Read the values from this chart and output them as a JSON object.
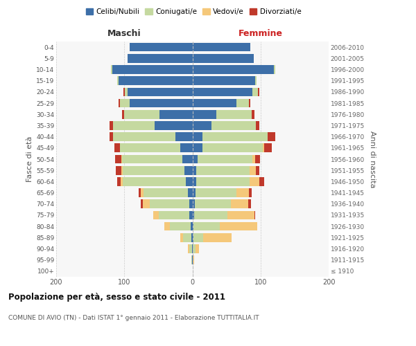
{
  "age_groups": [
    "100+",
    "95-99",
    "90-94",
    "85-89",
    "80-84",
    "75-79",
    "70-74",
    "65-69",
    "60-64",
    "55-59",
    "50-54",
    "45-49",
    "40-44",
    "35-39",
    "30-34",
    "25-29",
    "20-24",
    "15-19",
    "10-14",
    "5-9",
    "0-4"
  ],
  "birth_years": [
    "≤ 1910",
    "1911-1915",
    "1916-1920",
    "1921-1925",
    "1926-1930",
    "1931-1935",
    "1936-1940",
    "1941-1945",
    "1946-1950",
    "1951-1955",
    "1956-1960",
    "1961-1965",
    "1966-1970",
    "1971-1975",
    "1976-1980",
    "1981-1985",
    "1986-1990",
    "1991-1995",
    "1996-2000",
    "2001-2005",
    "2006-2010"
  ],
  "colors": {
    "celibi": "#3d6fa8",
    "coniugati": "#c5d9a0",
    "vedovi": "#f5c87a",
    "divorziati": "#c0392b"
  },
  "maschi": {
    "celibi": [
      0,
      1,
      1,
      2,
      3,
      5,
      5,
      7,
      10,
      12,
      15,
      18,
      25,
      55,
      48,
      92,
      95,
      108,
      118,
      95,
      92
    ],
    "coniugati": [
      0,
      1,
      4,
      12,
      30,
      44,
      58,
      65,
      92,
      90,
      88,
      88,
      92,
      62,
      52,
      14,
      4,
      2,
      2,
      0,
      0
    ],
    "vedovi": [
      0,
      0,
      2,
      4,
      8,
      8,
      10,
      4,
      3,
      2,
      1,
      0,
      0,
      0,
      0,
      0,
      0,
      0,
      0,
      0,
      0
    ],
    "divorziati": [
      0,
      0,
      0,
      0,
      0,
      0,
      3,
      3,
      5,
      8,
      9,
      9,
      5,
      5,
      3,
      2,
      2,
      0,
      0,
      0,
      0
    ]
  },
  "femmine": {
    "celibi": [
      0,
      0,
      1,
      2,
      2,
      3,
      4,
      5,
      6,
      6,
      8,
      15,
      15,
      28,
      35,
      65,
      88,
      92,
      120,
      90,
      85
    ],
    "coniugati": [
      0,
      1,
      4,
      14,
      38,
      48,
      52,
      60,
      78,
      78,
      80,
      88,
      95,
      65,
      52,
      18,
      8,
      2,
      2,
      0,
      0
    ],
    "vedovi": [
      0,
      2,
      5,
      42,
      55,
      40,
      26,
      18,
      14,
      9,
      4,
      2,
      0,
      0,
      0,
      0,
      0,
      0,
      0,
      0,
      0
    ],
    "divorziati": [
      0,
      0,
      0,
      0,
      0,
      1,
      4,
      4,
      7,
      5,
      7,
      12,
      12,
      5,
      4,
      2,
      2,
      0,
      0,
      0,
      0
    ]
  },
  "title": "Popolazione per età, sesso e stato civile - 2011",
  "subtitle": "COMUNE DI AVIO (TN) - Dati ISTAT 1° gennaio 2011 - Elaborazione TUTTITALIA.IT",
  "maschi_label": "Maschi",
  "femmine_label": "Femmine",
  "ylabel_left": "Fasce di età",
  "ylabel_right": "Anni di nascita",
  "xlim": 200,
  "bg_color": "#ffffff",
  "plot_bg_color": "#f7f7f7",
  "grid_color": "#cccccc",
  "legend_labels": [
    "Celibi/Nubili",
    "Coniugati/e",
    "Vedovi/e",
    "Divorziati/e"
  ]
}
